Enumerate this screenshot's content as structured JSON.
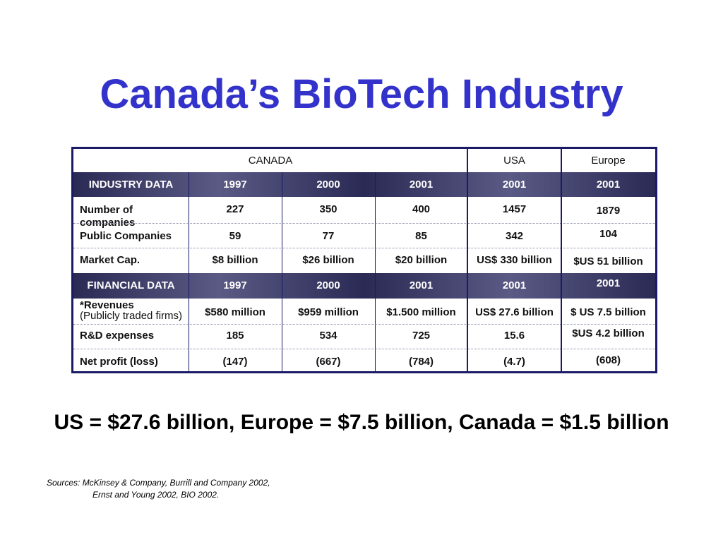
{
  "title": "Canada’s BioTech Industry",
  "table": {
    "region_headers": [
      "CANADA",
      "USA",
      "Europe"
    ],
    "industry_band": {
      "label": "INDUSTRY DATA",
      "years": [
        "1997",
        "2000",
        "2001",
        "2001",
        "2001"
      ]
    },
    "industry_rows": [
      {
        "label": "Number of companies",
        "values": [
          "227",
          "350",
          "400",
          "1457",
          "1879"
        ]
      },
      {
        "label": "Public Companies",
        "values": [
          "59",
          "77",
          "85",
          "342",
          "104"
        ]
      },
      {
        "label": "Market Cap.",
        "values": [
          "$8 billion",
          "$26 billion",
          "$20 billion",
          "US$ 330 billion",
          "$US 51 billion"
        ]
      }
    ],
    "financial_band": {
      "label": "FINANCIAL DATA",
      "years": [
        "1997",
        "2000",
        "2001",
        "2001",
        "2001"
      ]
    },
    "revenues": {
      "label": "*Revenues",
      "sublabel": "(Publicly traded firms)",
      "values": [
        "$580 million",
        "$959 million",
        "$1.500 million",
        "US$ 27.6 billion",
        "$ US 7.5 billion"
      ]
    },
    "financial_rows": [
      {
        "label": "R&D expenses",
        "values": [
          "185",
          "534",
          "725",
          "15.6",
          "$US 4.2 billion"
        ]
      },
      {
        "label": "Net profit (loss)",
        "values": [
          "(147)",
          "(667)",
          "(784)",
          "(4.7)",
          "(608)"
        ]
      }
    ]
  },
  "summary": "US = $27.6 billion, Europe = $7.5 billion, Canada = $1.5 billion",
  "sources": {
    "line1": "Sources:  McKinsey & Company, Burrill and Company 2002,",
    "line2": "Ernst and Young 2002, BIO 2002."
  }
}
